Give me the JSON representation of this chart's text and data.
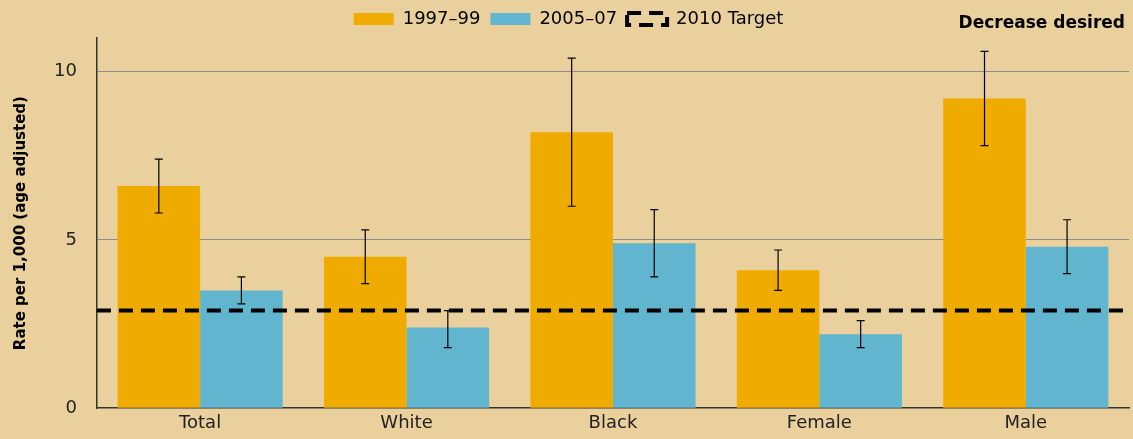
{
  "chart_data": {
    "type": "bar",
    "ylabel": "Rate per 1,000 (age adjusted)",
    "categories": [
      "Total",
      "White",
      "Black",
      "Female",
      "Male"
    ],
    "series": [
      {
        "name": "1997–99",
        "color": "#f0ab00",
        "values": [
          6.6,
          4.5,
          8.2,
          4.1,
          9.2
        ],
        "errors": [
          [
            5.8,
            7.4
          ],
          [
            3.7,
            5.3
          ],
          [
            6.0,
            10.4
          ],
          [
            3.5,
            4.7
          ],
          [
            7.8,
            10.6
          ]
        ]
      },
      {
        "name": "2005–07",
        "color": "#62b5cf",
        "values": [
          3.5,
          2.4,
          4.9,
          2.2,
          4.8
        ],
        "errors": [
          [
            3.1,
            3.9
          ],
          [
            1.8,
            2.9
          ],
          [
            3.9,
            5.9
          ],
          [
            1.8,
            2.6
          ],
          [
            4.0,
            5.6
          ]
        ]
      }
    ],
    "ylim": [
      0,
      11
    ],
    "yticks": [
      0,
      5,
      10
    ],
    "grid": "y",
    "legend": "top",
    "ref_lines": [
      {
        "axis": "y",
        "value": 2.9,
        "label": "2010 Target",
        "color": "#000000",
        "line_style": "dashed"
      }
    ],
    "annotations": [
      "Decrease desired"
    ]
  }
}
